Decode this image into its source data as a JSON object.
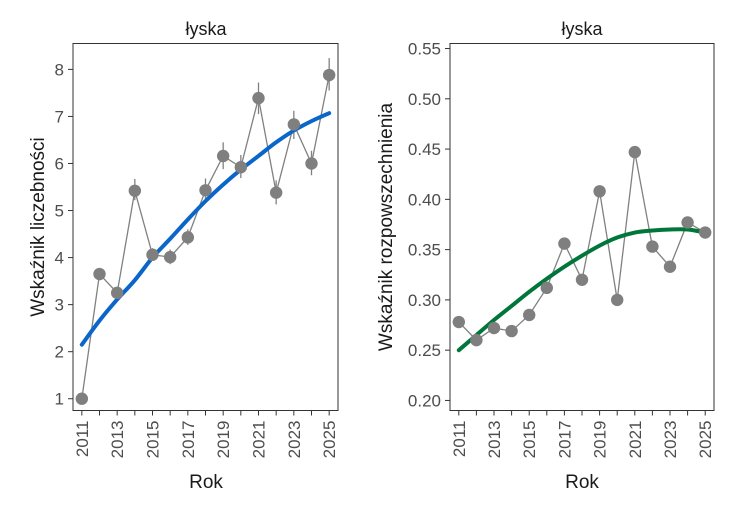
{
  "chart_data": [
    {
      "type": "line",
      "title": "łyska",
      "xlabel": "Rok",
      "ylabel": "Wskaźnik liczebności",
      "xlim": [
        2010.5,
        2025.5
      ],
      "ylim": [
        0.75,
        8.55
      ],
      "x_ticks": [
        2011,
        2013,
        2015,
        2017,
        2019,
        2021,
        2023,
        2025
      ],
      "x_tick_labels": [
        "2011",
        "2013",
        "2015",
        "2017",
        "2019",
        "2021",
        "2023",
        "2025"
      ],
      "y_ticks": [
        1,
        2,
        3,
        4,
        5,
        6,
        7,
        8
      ],
      "y_tick_labels": [
        "1",
        "2",
        "3",
        "4",
        "5",
        "6",
        "7",
        "8"
      ],
      "trend_color": "#0a66c9",
      "series": [
        {
          "name": "observed",
          "x": [
            2011,
            2012,
            2013,
            2014,
            2015,
            2016,
            2017,
            2018,
            2019,
            2020,
            2021,
            2022,
            2023,
            2024,
            2025
          ],
          "values": [
            1.0,
            3.65,
            3.25,
            5.42,
            4.06,
            4.01,
            4.43,
            5.43,
            6.16,
            5.92,
            7.39,
            5.38,
            6.83,
            6.0,
            7.88
          ],
          "err_low": [
            1.0,
            3.52,
            3.15,
            5.22,
            3.93,
            3.86,
            4.27,
            5.2,
            5.88,
            5.69,
            7.05,
            5.13,
            6.52,
            5.75,
            7.55
          ],
          "err_high": [
            1.0,
            3.78,
            3.38,
            5.67,
            4.2,
            4.17,
            4.6,
            5.68,
            6.45,
            6.18,
            7.72,
            5.64,
            7.12,
            6.27,
            8.24
          ]
        },
        {
          "name": "trend",
          "x": [
            2011,
            2012,
            2013,
            2014,
            2015,
            2016,
            2017,
            2018,
            2019,
            2020,
            2021,
            2022,
            2023,
            2024,
            2025
          ],
          "values": [
            2.15,
            2.66,
            3.11,
            3.52,
            4.0,
            4.4,
            4.81,
            5.2,
            5.55,
            5.87,
            6.16,
            6.45,
            6.7,
            6.9,
            7.07
          ]
        }
      ]
    },
    {
      "type": "line",
      "title": "łyska",
      "xlabel": "Rok",
      "ylabel": "Wskaźnik rozpowszechnienia",
      "xlim": [
        2010.5,
        2025.5
      ],
      "ylim": [
        0.19,
        0.555
      ],
      "x_ticks": [
        2011,
        2013,
        2015,
        2017,
        2019,
        2021,
        2023,
        2025
      ],
      "x_tick_labels": [
        "2011",
        "2013",
        "2015",
        "2017",
        "2019",
        "2021",
        "2023",
        "2025"
      ],
      "y_ticks": [
        0.2,
        0.25,
        0.3,
        0.35,
        0.4,
        0.45,
        0.5,
        0.55
      ],
      "y_tick_labels": [
        "0.20",
        "0.25",
        "0.30",
        "0.35",
        "0.40",
        "0.45",
        "0.50",
        "0.55"
      ],
      "trend_color": "#00763a",
      "series": [
        {
          "name": "observed",
          "x": [
            2011,
            2012,
            2013,
            2014,
            2015,
            2016,
            2017,
            2018,
            2019,
            2020,
            2021,
            2022,
            2023,
            2024,
            2025
          ],
          "values": [
            0.278,
            0.26,
            0.272,
            0.269,
            0.285,
            0.312,
            0.356,
            0.32,
            0.408,
            0.3,
            0.447,
            0.353,
            0.333,
            0.377,
            0.367
          ]
        },
        {
          "name": "trend",
          "x": [
            2011,
            2012,
            2013,
            2014,
            2015,
            2016,
            2017,
            2018,
            2019,
            2020,
            2021,
            2022,
            2023,
            2024,
            2025
          ],
          "values": [
            0.25,
            0.265,
            0.28,
            0.294,
            0.308,
            0.321,
            0.333,
            0.344,
            0.354,
            0.362,
            0.367,
            0.369,
            0.37,
            0.37,
            0.367
          ]
        }
      ]
    }
  ]
}
